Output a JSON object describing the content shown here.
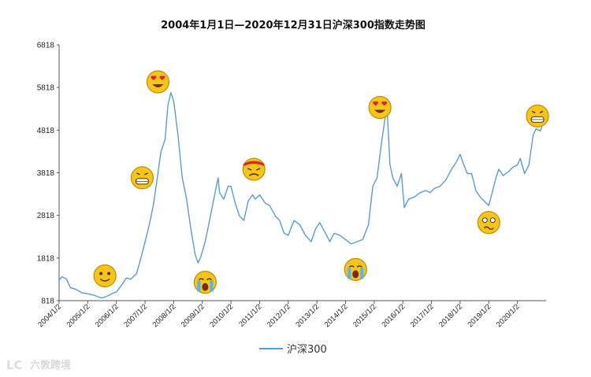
{
  "chart_data": {
    "type": "line",
    "title": "2004年1月1日—2020年12月31日沪深300指数走势图",
    "ylim": [
      818,
      6818
    ],
    "yticks": [
      818,
      1818,
      2818,
      3818,
      4818,
      5818,
      6818
    ],
    "xticks": [
      "2004/1/2",
      "2005/1/2",
      "2006/1/2",
      "2007/1/2",
      "2008/1/2",
      "2009/1/2",
      "2010/1/2",
      "2011/1/2",
      "2012/1/2",
      "2013/1/2",
      "2014/1/2",
      "2015/1/2",
      "2016/1/2",
      "2017/1/2",
      "2018/1/2",
      "2019/1/2",
      "2020/1/2"
    ],
    "xlim": [
      2004.0,
      2021.0
    ],
    "legend": "bottom",
    "series": [
      {
        "name": "沪深300",
        "color": "#5b9bd5",
        "x": [
          2004.0,
          2004.1,
          2004.25,
          2004.4,
          2004.6,
          2004.8,
          2005.0,
          2005.2,
          2005.4,
          2005.5,
          2005.7,
          2005.9,
          2006.0,
          2006.2,
          2006.35,
          2006.5,
          2006.7,
          2006.85,
          2007.0,
          2007.15,
          2007.3,
          2007.45,
          2007.55,
          2007.7,
          2007.8,
          2007.9,
          2008.0,
          2008.15,
          2008.3,
          2008.45,
          2008.6,
          2008.75,
          2008.85,
          2008.95,
          2009.1,
          2009.25,
          2009.4,
          2009.55,
          2009.6,
          2009.75,
          2009.9,
          2010.0,
          2010.15,
          2010.3,
          2010.45,
          2010.6,
          2010.75,
          2010.85,
          2011.0,
          2011.2,
          2011.35,
          2011.55,
          2011.7,
          2011.85,
          2012.0,
          2012.2,
          2012.4,
          2012.6,
          2012.8,
          2012.95,
          2013.1,
          2013.3,
          2013.45,
          2013.6,
          2013.8,
          2014.0,
          2014.2,
          2014.4,
          2014.6,
          2014.8,
          2014.95,
          2015.1,
          2015.25,
          2015.4,
          2015.45,
          2015.55,
          2015.65,
          2015.8,
          2015.95,
          2016.05,
          2016.2,
          2016.4,
          2016.6,
          2016.8,
          2016.95,
          2017.1,
          2017.3,
          2017.5,
          2017.7,
          2017.85,
          2018.0,
          2018.1,
          2018.25,
          2018.4,
          2018.55,
          2018.7,
          2018.85,
          2019.0,
          2019.1,
          2019.25,
          2019.35,
          2019.5,
          2019.7,
          2019.85,
          2020.0,
          2020.1,
          2020.25,
          2020.4,
          2020.55,
          2020.65,
          2020.8,
          2020.9,
          2021.0
        ],
        "values": [
          1300,
          1380,
          1330,
          1120,
          1080,
          1000,
          980,
          950,
          900,
          880,
          930,
          1000,
          1020,
          1200,
          1350,
          1320,
          1450,
          1800,
          2200,
          2600,
          3100,
          3800,
          4300,
          4600,
          5400,
          5700,
          5500,
          4700,
          3700,
          3200,
          2500,
          1900,
          1700,
          1850,
          2200,
          2700,
          3200,
          3700,
          3350,
          3200,
          3500,
          3500,
          3100,
          2800,
          2700,
          3150,
          3300,
          3200,
          3300,
          3100,
          3050,
          2800,
          2700,
          2400,
          2350,
          2700,
          2600,
          2350,
          2200,
          2500,
          2650,
          2400,
          2200,
          2400,
          2350,
          2250,
          2150,
          2200,
          2250,
          2600,
          3500,
          3700,
          4500,
          5200,
          5350,
          4000,
          3700,
          3500,
          3800,
          3000,
          3200,
          3250,
          3350,
          3400,
          3350,
          3450,
          3500,
          3650,
          3900,
          4050,
          4250,
          4050,
          3800,
          3800,
          3400,
          3250,
          3150,
          3050,
          3300,
          3700,
          3900,
          3750,
          3850,
          3950,
          4000,
          4150,
          3800,
          4000,
          4700,
          4850,
          4800,
          5000,
          5200
        ]
      }
    ],
    "emojis": [
      {
        "name": "smile-emoji",
        "x": 2005.6,
        "y": 1400
      },
      {
        "name": "grin-emoji",
        "x": 2006.9,
        "y": 3700
      },
      {
        "name": "heart-eyes-emoji",
        "x": 2007.45,
        "y": 5950
      },
      {
        "name": "cry-emoji",
        "x": 2009.1,
        "y": 1250
      },
      {
        "name": "angry-emoji",
        "x": 2010.8,
        "y": 3900
      },
      {
        "name": "cry-emoji",
        "x": 2014.35,
        "y": 1550
      },
      {
        "name": "heart-eyes-emoji",
        "x": 2015.2,
        "y": 5350
      },
      {
        "name": "sad-emoji",
        "x": 2019.0,
        "y": 2650
      },
      {
        "name": "grin-emoji",
        "x": 2020.7,
        "y": 5150
      }
    ]
  },
  "watermark": "六敦跨境",
  "watermark_logo": "LC"
}
